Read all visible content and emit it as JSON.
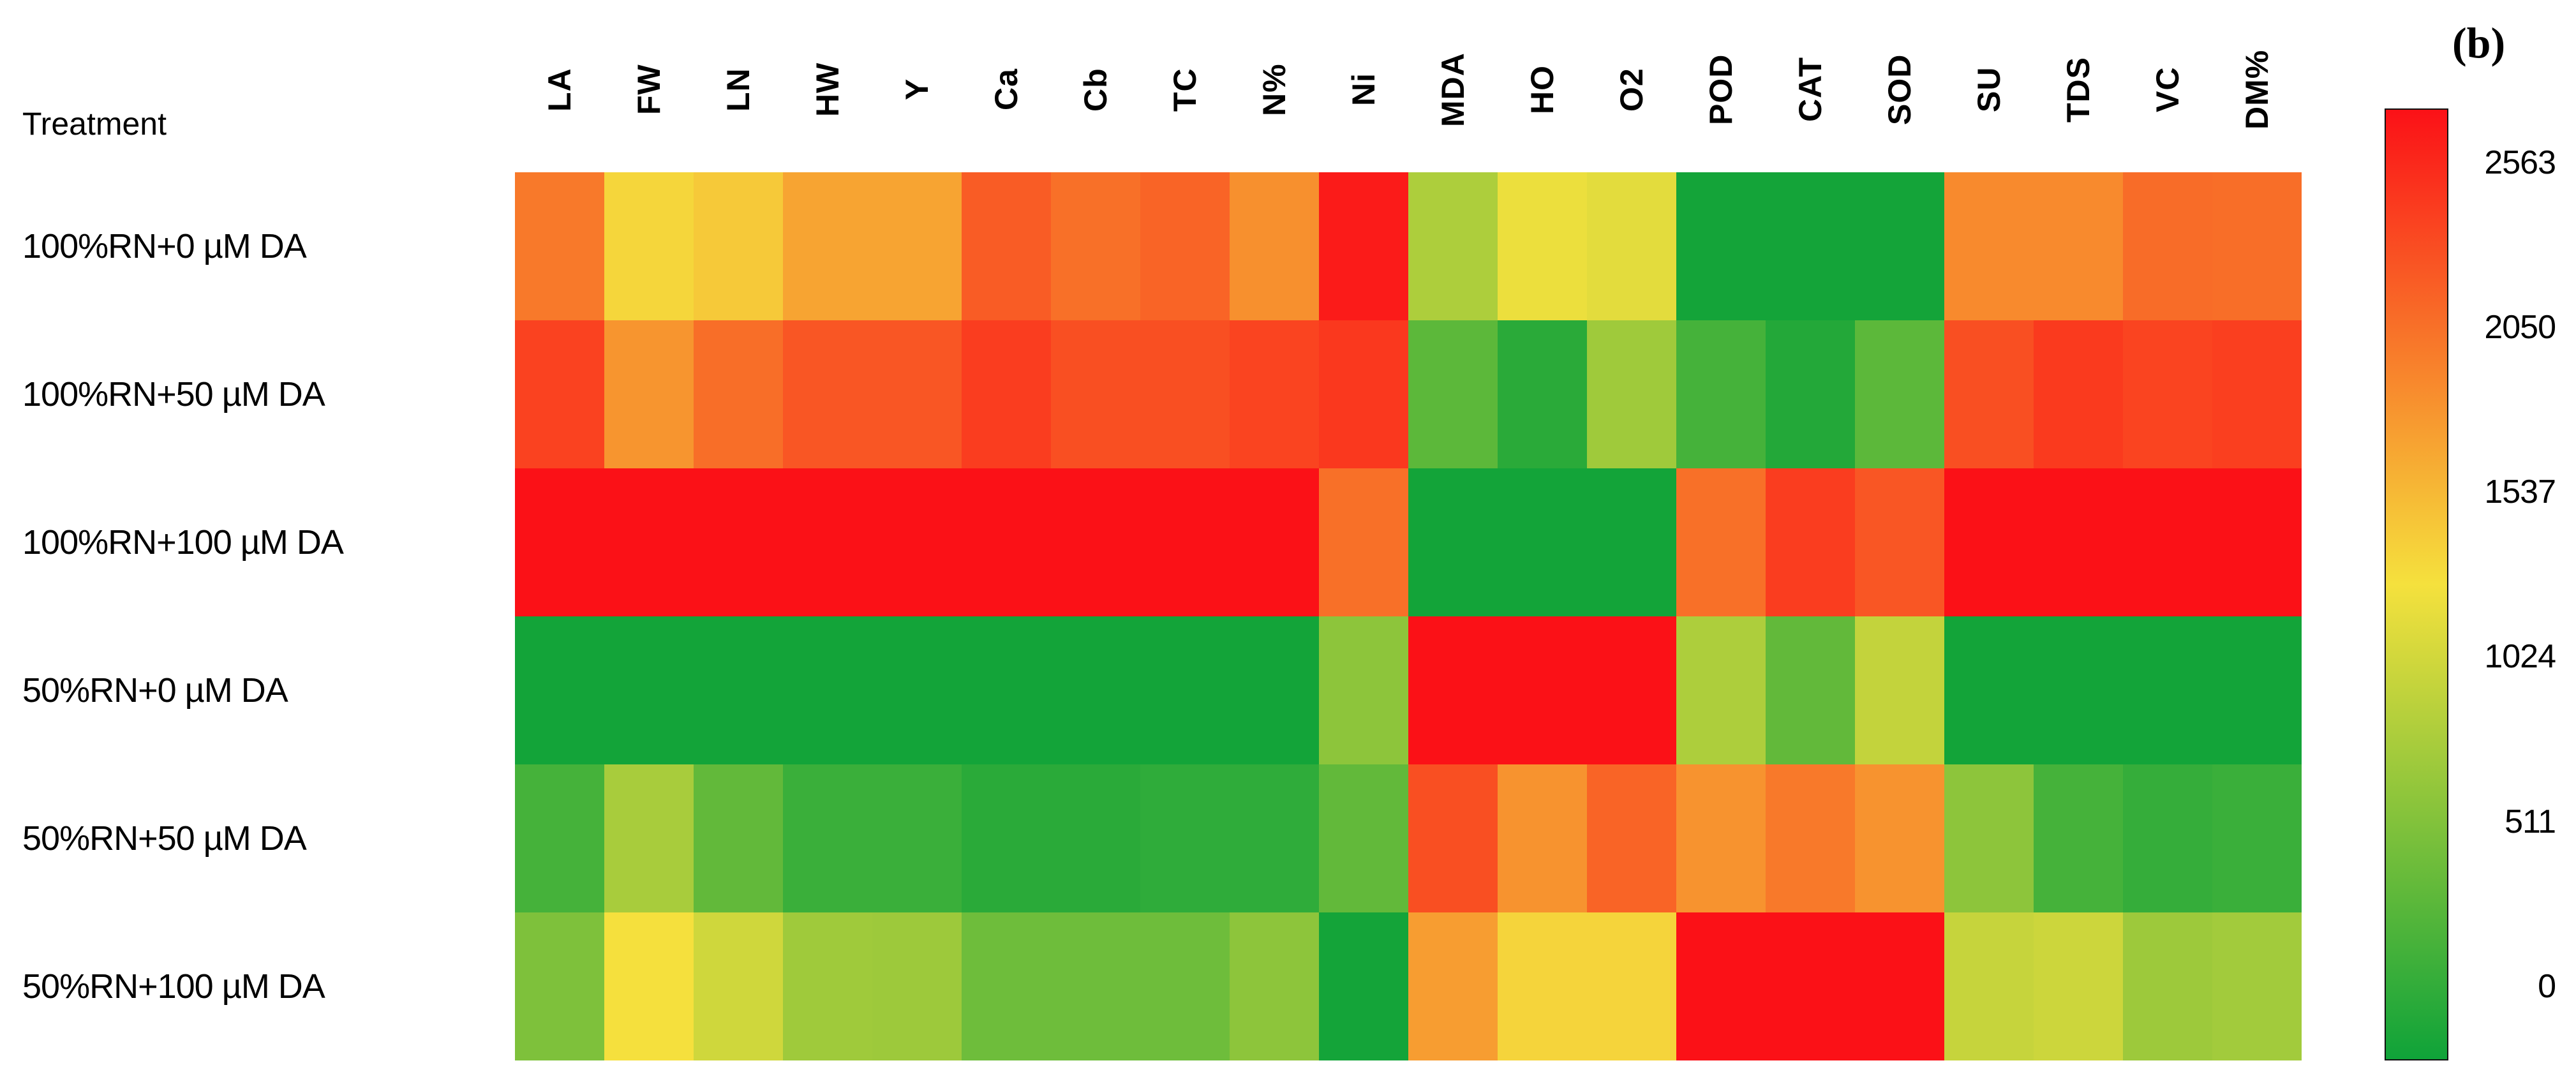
{
  "panel_label": "(b)",
  "treatment_header": "Treatment",
  "chart_data": {
    "type": "heatmap",
    "title": "(b)",
    "columns": [
      "LA",
      "FW",
      "LN",
      "HW",
      "Y",
      "Ca",
      "Cb",
      "TC",
      "N%",
      "Ni",
      "MDA",
      "HO",
      "O2",
      "POD",
      "CAT",
      "SOD",
      "SU",
      "TDS",
      "VC",
      "DM%"
    ],
    "rows": [
      "100%RN+0 µM DA",
      "100%RN+50 µM DA",
      "100%RN+100 µM DA",
      "50%RN+0 µM DA",
      "50%RN+50 µM DA",
      "50%RN+100 µM DA"
    ],
    "values": [
      [
        1920,
        1350,
        1430,
        1660,
        1660,
        2100,
        1980,
        2050,
        1780,
        2500,
        880,
        1230,
        1180,
        30,
        30,
        30,
        1820,
        1820,
        2000,
        1990
      ],
      [
        2260,
        1750,
        1990,
        2140,
        2140,
        2290,
        2180,
        2180,
        2250,
        2320,
        430,
        150,
        800,
        300,
        110,
        430,
        2180,
        2310,
        2250,
        2280
      ],
      [
        2560,
        2560,
        2560,
        2560,
        2560,
        2560,
        2560,
        2560,
        2560,
        1980,
        20,
        20,
        20,
        1980,
        2290,
        2140,
        2560,
        2560,
        2560,
        2560
      ],
      [
        20,
        20,
        20,
        20,
        20,
        20,
        20,
        20,
        20,
        700,
        2560,
        2560,
        2560,
        880,
        460,
        1000,
        20,
        20,
        20,
        20
      ],
      [
        300,
        850,
        460,
        240,
        240,
        150,
        150,
        180,
        180,
        460,
        2180,
        1760,
        2050,
        1760,
        1920,
        1760,
        700,
        300,
        210,
        240
      ],
      [
        620,
        1290,
        1070,
        800,
        790,
        530,
        530,
        530,
        700,
        30,
        1700,
        1360,
        1360,
        2560,
        2560,
        2560,
        1020,
        1050,
        790,
        820
      ]
    ],
    "colorbar": {
      "ticks": [
        "2563",
        "2050",
        "1537",
        "1024",
        "511",
        "0"
      ],
      "min": 0,
      "mid": 1281,
      "max": 2563,
      "legend_position": "right"
    },
    "colors": {
      "low": "#0FA339",
      "mid": "#F5E13D",
      "high": "#FB1117"
    },
    "grid": false
  }
}
